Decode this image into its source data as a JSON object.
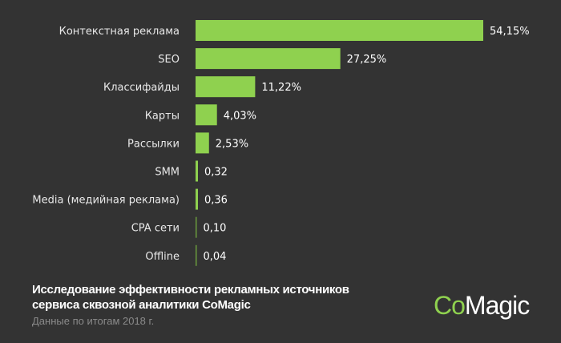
{
  "chart_data": {
    "type": "bar",
    "orientation": "horizontal",
    "categories": [
      "Контекстная реклама",
      "SEO",
      "Классифайды",
      "Карты",
      "Рассылки",
      "SMM",
      "Media (медийная реклама)",
      "CPA сети",
      "Offline"
    ],
    "values": [
      54.15,
      27.25,
      11.22,
      4.03,
      2.53,
      0.32,
      0.36,
      0.1,
      0.04
    ],
    "labels": [
      "54,15%",
      "27,25%",
      "11,22%",
      "4,03%",
      "2,53%",
      "0,32",
      "0,36",
      "0,10",
      "0,04"
    ],
    "xlim": [
      0,
      54.15
    ],
    "grid": false,
    "bar_color": "#8fd14f"
  },
  "footer": {
    "title_line1": "Исследование эффективности рекламных источников",
    "title_line2": "сервиса сквозной аналитики CoMagic",
    "subtitle": "Данные по итогам 2018 г.",
    "logo_co": "Co",
    "logo_magic": "Magic"
  }
}
